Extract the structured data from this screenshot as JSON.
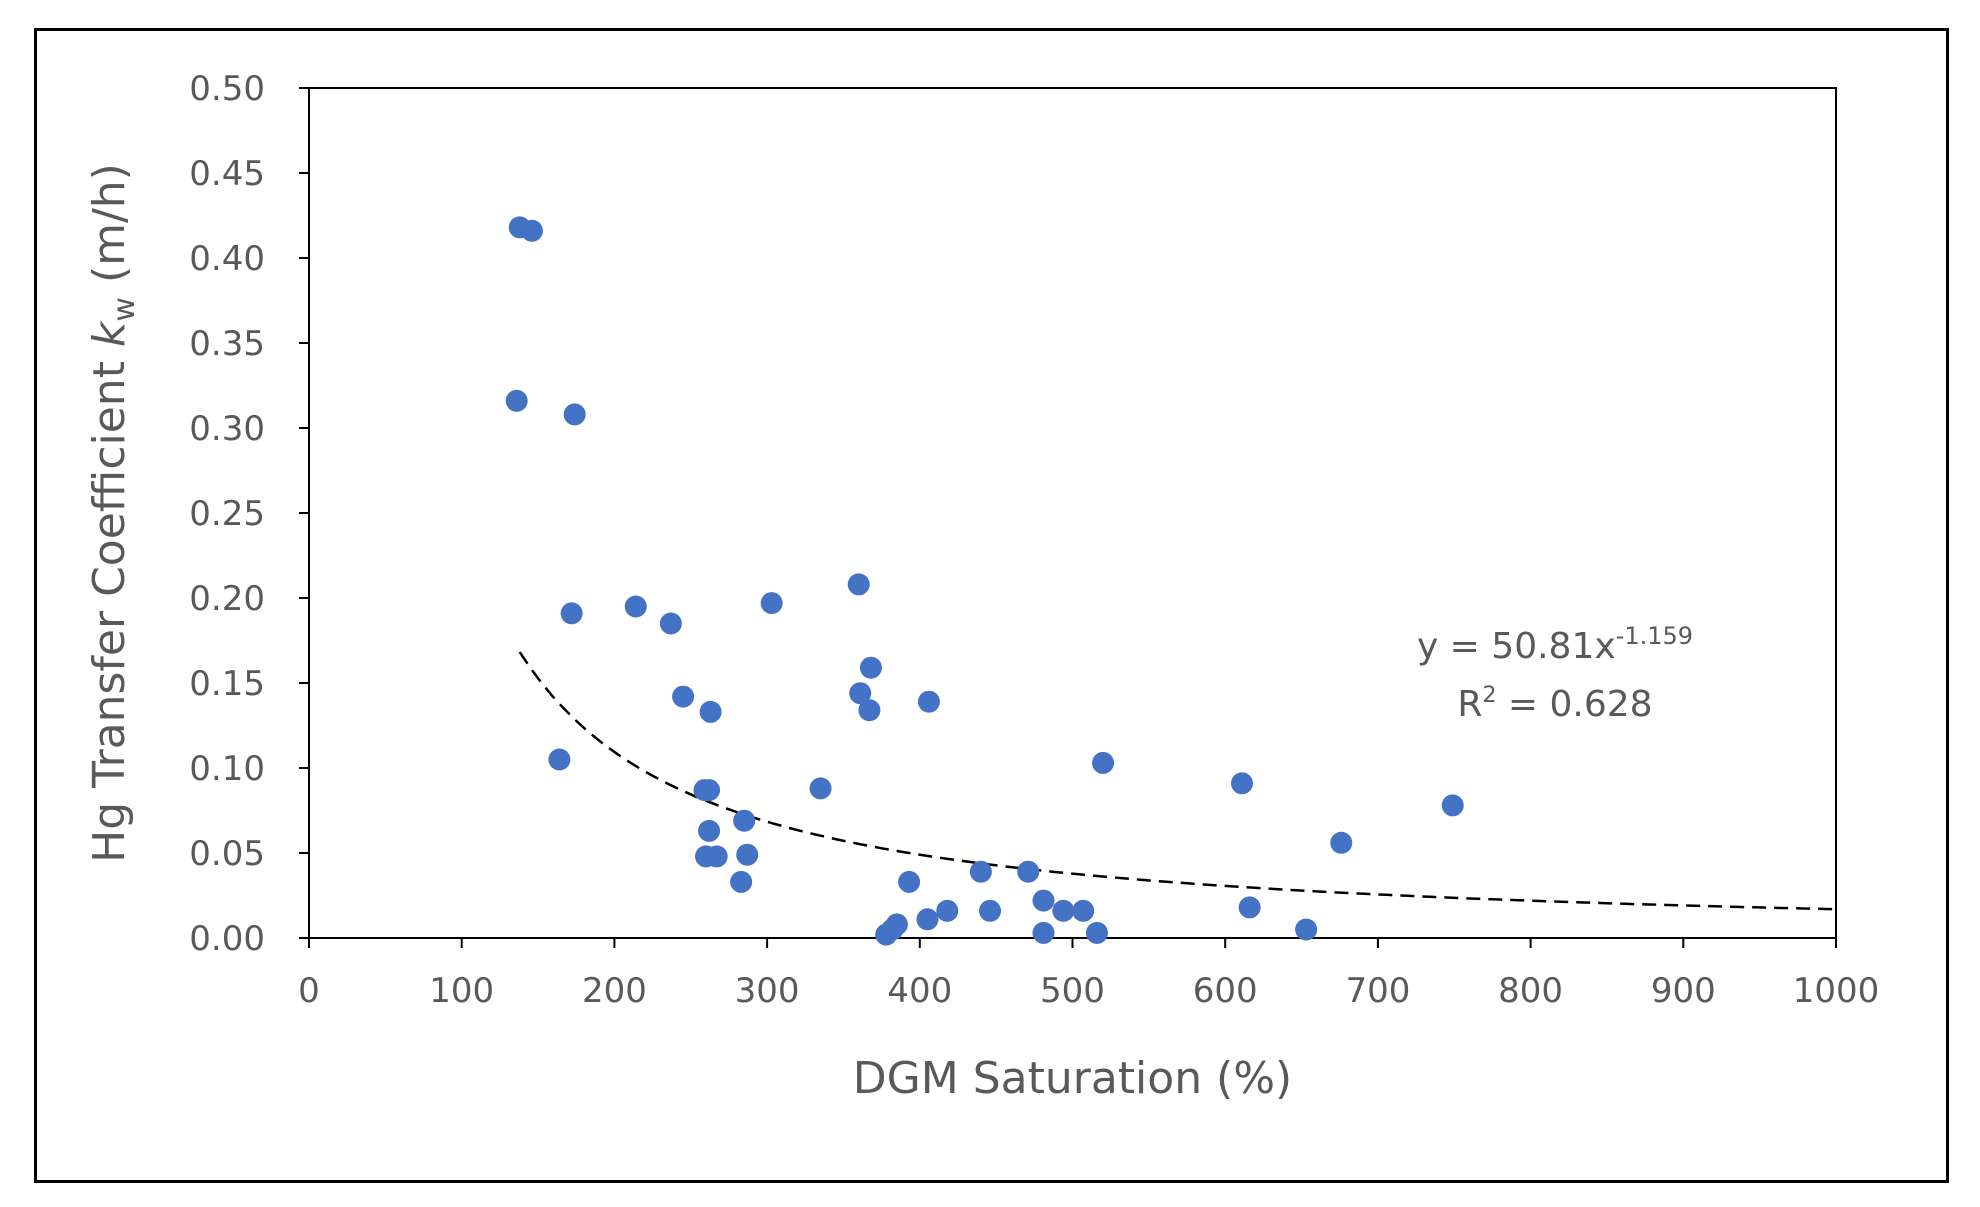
{
  "colors": {
    "point": "#4472C4",
    "trendline": "#000000",
    "text": "#595959"
  },
  "chart_data": {
    "type": "scatter",
    "title": "",
    "xlabel": "DGM Saturation (%)",
    "ylabel": {
      "prefix": "Hg Transfer Coefficient ",
      "symbol": "k",
      "subscript": "w",
      "suffix": " (m/h)"
    },
    "xlim": [
      0,
      1000
    ],
    "ylim": [
      0,
      0.5
    ],
    "x_ticks": [
      0,
      100,
      200,
      300,
      400,
      500,
      600,
      700,
      800,
      900,
      1000
    ],
    "x_tick_labels": [
      "0",
      "100",
      "200",
      "300",
      "400",
      "500",
      "600",
      "700",
      "800",
      "900",
      "1000"
    ],
    "y_ticks": [
      0,
      0.05,
      0.1,
      0.15,
      0.2,
      0.25,
      0.3,
      0.35,
      0.4,
      0.45,
      0.5
    ],
    "y_tick_labels": [
      "0.00",
      "0.05",
      "0.10",
      "0.15",
      "0.20",
      "0.25",
      "0.30",
      "0.35",
      "0.40",
      "0.45",
      "0.50"
    ],
    "series": [
      {
        "name": "Hg transfer coefficient",
        "points": [
          [
            138,
            0.418
          ],
          [
            146,
            0.416
          ],
          [
            136,
            0.316
          ],
          [
            174,
            0.308
          ],
          [
            172,
            0.191
          ],
          [
            164,
            0.105
          ],
          [
            214,
            0.195
          ],
          [
            237,
            0.185
          ],
          [
            245,
            0.142
          ],
          [
            263,
            0.133
          ],
          [
            303,
            0.197
          ],
          [
            259,
            0.087
          ],
          [
            262,
            0.087
          ],
          [
            262,
            0.063
          ],
          [
            260,
            0.048
          ],
          [
            267,
            0.048
          ],
          [
            285,
            0.069
          ],
          [
            287,
            0.049
          ],
          [
            283,
            0.033
          ],
          [
            335,
            0.088
          ],
          [
            360,
            0.208
          ],
          [
            361,
            0.144
          ],
          [
            368,
            0.159
          ],
          [
            367,
            0.134
          ],
          [
            406,
            0.139
          ],
          [
            393,
            0.033
          ],
          [
            378,
            0.002
          ],
          [
            382,
            0.005
          ],
          [
            385,
            0.008
          ],
          [
            405,
            0.011
          ],
          [
            418,
            0.016
          ],
          [
            440,
            0.039
          ],
          [
            446,
            0.016
          ],
          [
            471,
            0.039
          ],
          [
            481,
            0.022
          ],
          [
            494,
            0.016
          ],
          [
            507,
            0.016
          ],
          [
            481,
            0.003
          ],
          [
            516,
            0.003
          ],
          [
            520,
            0.103
          ],
          [
            611,
            0.091
          ],
          [
            616,
            0.018
          ],
          [
            653,
            0.005
          ],
          [
            676,
            0.056
          ],
          [
            749,
            0.078
          ]
        ]
      }
    ],
    "trendline": {
      "type": "power",
      "a": 50.81,
      "b": -1.159,
      "x_range": [
        138,
        1000
      ],
      "style": "dashed"
    },
    "annotation": {
      "equation_prefix": "y = 50.81x",
      "equation_exponent": "-1.159",
      "r2_prefix": "R",
      "r2_exponent": "2",
      "r2_suffix": " = 0.628"
    }
  }
}
